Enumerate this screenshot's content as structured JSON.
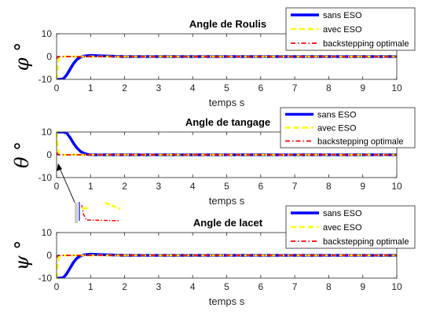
{
  "chart_data": [
    {
      "type": "line",
      "title": "Angle de Roulis",
      "xlabel": "temps s",
      "ylabel": "φ °",
      "xlim": [
        0,
        10
      ],
      "ylim": [
        -10,
        10
      ],
      "xticks": [
        0,
        1,
        2,
        3,
        4,
        5,
        6,
        7,
        8,
        9,
        10
      ],
      "yticks": [
        -10,
        0,
        10
      ],
      "grid": false,
      "legend": "top-right",
      "series": [
        {
          "name": "sans ESO",
          "color": "#0000ff",
          "style": "solid",
          "x": [
            0,
            0.1,
            0.2,
            0.3,
            0.4,
            0.5,
            0.6,
            0.7,
            0.8,
            1.0,
            1.2,
            1.5,
            2,
            10
          ],
          "y": [
            -10,
            -10,
            -9.8,
            -8,
            -5.5,
            -3,
            -1.2,
            -0.3,
            0.2,
            0.5,
            0.4,
            0.2,
            0,
            0
          ]
        },
        {
          "name": "avec ESO",
          "color": "#ffff00",
          "style": "dashed",
          "x": [
            0,
            0.02,
            0.05,
            0.08,
            0.12,
            0.2,
            10
          ],
          "y": [
            -10,
            -6,
            -2,
            -0.4,
            0,
            0,
            0
          ]
        },
        {
          "name": "backstepping optimale",
          "color": "#ff0000",
          "style": "dashdot",
          "x": [
            0,
            0.03,
            0.06,
            0.1,
            10
          ],
          "y": [
            -1,
            -0.3,
            0,
            0,
            0
          ]
        }
      ]
    },
    {
      "type": "line",
      "title": "Angle de tangage",
      "xlabel": "temps s",
      "ylabel": "θ °",
      "xlim": [
        0,
        10
      ],
      "ylim": [
        -10,
        10
      ],
      "xticks": [
        0,
        1,
        2,
        3,
        4,
        5,
        6,
        7,
        8,
        9,
        10
      ],
      "yticks": [
        -10,
        0,
        10
      ],
      "grid": false,
      "legend": "top-right",
      "series": [
        {
          "name": "sans ESO",
          "color": "#0000ff",
          "style": "solid",
          "x": [
            0,
            0.1,
            0.2,
            0.3,
            0.4,
            0.5,
            0.6,
            0.7,
            0.8,
            0.9,
            1.0,
            1.2,
            2,
            10
          ],
          "y": [
            10,
            10,
            10,
            9.5,
            7.5,
            5,
            3,
            1.5,
            0.7,
            0.2,
            0,
            0,
            0,
            0
          ]
        },
        {
          "name": "avec ESO",
          "color": "#ffff00",
          "style": "dashed",
          "x": [
            0,
            0.02,
            0.05,
            0.08,
            0.12,
            0.2,
            10
          ],
          "y": [
            10,
            6,
            2,
            0.4,
            0,
            0,
            0
          ]
        },
        {
          "name": "backstepping optimale",
          "color": "#ff0000",
          "style": "dashdot",
          "x": [
            0,
            0.03,
            0.06,
            0.1,
            10
          ],
          "y": [
            1,
            0.3,
            0,
            0,
            0
          ]
        }
      ]
    },
    {
      "type": "line",
      "title": "Angle de lacet",
      "xlabel": "temps s",
      "ylabel": "ψ °",
      "xlim": [
        0,
        10
      ],
      "ylim": [
        -10,
        10
      ],
      "xticks": [
        0,
        1,
        2,
        3,
        4,
        5,
        6,
        7,
        8,
        9,
        10
      ],
      "yticks": [
        -10,
        0,
        10
      ],
      "grid": false,
      "legend": "top-right",
      "series": [
        {
          "name": "sans ESO",
          "color": "#0000ff",
          "style": "solid",
          "x": [
            0,
            0.1,
            0.2,
            0.3,
            0.4,
            0.5,
            0.6,
            0.7,
            0.8,
            1.0,
            1.2,
            1.5,
            2,
            10
          ],
          "y": [
            -10,
            -10,
            -9.8,
            -8,
            -5.5,
            -3,
            -1.2,
            -0.3,
            0.2,
            0.5,
            0.4,
            0.2,
            0,
            0
          ]
        },
        {
          "name": "avec ESO",
          "color": "#ffff00",
          "style": "dashed",
          "x": [
            0,
            0.02,
            0.05,
            0.08,
            0.12,
            0.2,
            10
          ],
          "y": [
            -10,
            -6,
            -2,
            -0.4,
            0,
            0,
            0
          ]
        },
        {
          "name": "backstepping optimale",
          "color": "#ff0000",
          "style": "dashdot",
          "x": [
            0,
            0.03,
            0.06,
            0.1,
            10
          ],
          "y": [
            -1,
            -0.3,
            0,
            0,
            0
          ]
        }
      ]
    }
  ]
}
